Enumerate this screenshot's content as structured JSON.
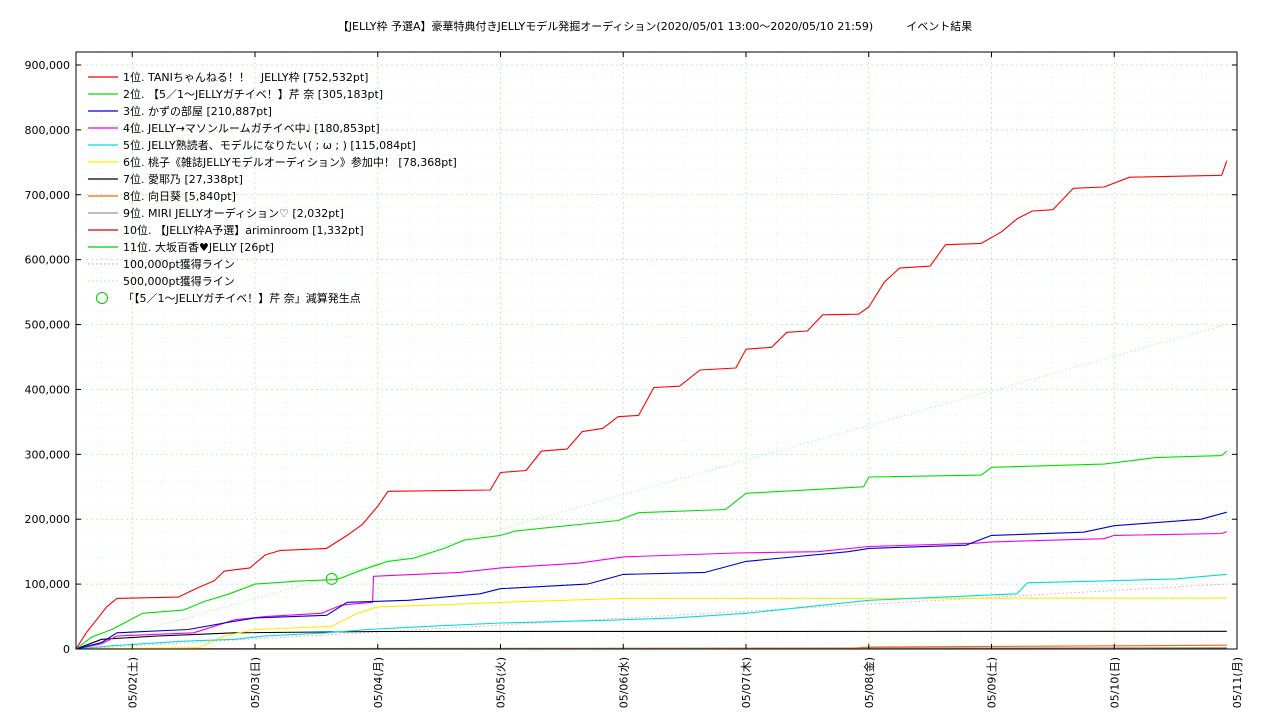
{
  "chart_data": {
    "type": "line",
    "title": "【JELLY枠 予選A】豪華特典付きJELLYモデル発掘オーディション(2020/05/01 13:00〜2020/05/10 21:59)　　　イベント結果",
    "x_start": "2020-05-01T13:00",
    "x_end": "2020-05-10T21:59",
    "xlim": [
      "2020-05-01T13:00",
      "2020-05-11T00:00"
    ],
    "ylim": [
      0,
      920000
    ],
    "y_ticks": [
      "0",
      "100,000",
      "200,000",
      "300,000",
      "400,000",
      "500,000",
      "600,000",
      "700,000",
      "800,000",
      "900,000"
    ],
    "x_ticks": [
      {
        "t": "2020-05-02T00:00",
        "label": "05/02(土)"
      },
      {
        "t": "2020-05-03T00:00",
        "label": "05/03(日)"
      },
      {
        "t": "2020-05-04T00:00",
        "label": "05/04(月)"
      },
      {
        "t": "2020-05-05T00:00",
        "label": "05/05(火)"
      },
      {
        "t": "2020-05-06T00:00",
        "label": "05/06(水)"
      },
      {
        "t": "2020-05-07T00:00",
        "label": "05/07(木)"
      },
      {
        "t": "2020-05-08T00:00",
        "label": "05/08(金)"
      },
      {
        "t": "2020-05-09T00:00",
        "label": "05/09(土)"
      },
      {
        "t": "2020-05-10T00:00",
        "label": "05/10(日)"
      },
      {
        "t": "2020-05-11T00:00",
        "label": "05/11(月)"
      }
    ],
    "grid": true,
    "legend_position": "top-left",
    "series": [
      {
        "name": "1位. TANIちゃんねる！！　JELLY枠 [752,532pt]",
        "color": "#ff0000",
        "style": "solid",
        "points": [
          [
            "2020-05-01T13:00",
            0
          ],
          [
            "2020-05-01T15:00",
            25000
          ],
          [
            "2020-05-01T17:00",
            45000
          ],
          [
            "2020-05-01T19:00",
            65000
          ],
          [
            "2020-05-01T21:00",
            78000
          ],
          [
            "2020-05-02T09:00",
            80000
          ],
          [
            "2020-05-02T13:00",
            95000
          ],
          [
            "2020-05-02T16:00",
            105000
          ],
          [
            "2020-05-02T18:00",
            120000
          ],
          [
            "2020-05-02T23:00",
            125000
          ],
          [
            "2020-05-03T02:00",
            145000
          ],
          [
            "2020-05-03T05:00",
            152000
          ],
          [
            "2020-05-03T14:00",
            155000
          ],
          [
            "2020-05-03T18:00",
            175000
          ],
          [
            "2020-05-03T21:00",
            192000
          ],
          [
            "2020-05-04T00:00",
            220000
          ],
          [
            "2020-05-04T02:00",
            243000
          ],
          [
            "2020-05-04T22:00",
            245000
          ],
          [
            "2020-05-05T00:00",
            272000
          ],
          [
            "2020-05-05T05:00",
            275000
          ],
          [
            "2020-05-05T08:00",
            305000
          ],
          [
            "2020-05-05T13:00",
            308000
          ],
          [
            "2020-05-05T16:00",
            335000
          ],
          [
            "2020-05-05T20:00",
            340000
          ],
          [
            "2020-05-05T23:00",
            358000
          ],
          [
            "2020-05-06T03:00",
            360000
          ],
          [
            "2020-05-06T06:00",
            403000
          ],
          [
            "2020-05-06T11:00",
            405000
          ],
          [
            "2020-05-06T15:00",
            430000
          ],
          [
            "2020-05-06T22:00",
            433000
          ],
          [
            "2020-05-07T00:00",
            462000
          ],
          [
            "2020-05-07T05:00",
            465000
          ],
          [
            "2020-05-07T08:00",
            488000
          ],
          [
            "2020-05-07T12:00",
            490000
          ],
          [
            "2020-05-07T15:00",
            515000
          ],
          [
            "2020-05-07T22:00",
            516000
          ],
          [
            "2020-05-08T00:00",
            527000
          ],
          [
            "2020-05-08T03:00",
            565000
          ],
          [
            "2020-05-08T06:00",
            587000
          ],
          [
            "2020-05-08T12:00",
            590000
          ],
          [
            "2020-05-08T15:00",
            623000
          ],
          [
            "2020-05-08T22:00",
            625000
          ],
          [
            "2020-05-09T02:00",
            643000
          ],
          [
            "2020-05-09T05:00",
            663000
          ],
          [
            "2020-05-09T08:00",
            675000
          ],
          [
            "2020-05-09T12:00",
            677000
          ],
          [
            "2020-05-09T16:00",
            710000
          ],
          [
            "2020-05-09T22:00",
            712000
          ],
          [
            "2020-05-10T03:00",
            727000
          ],
          [
            "2020-05-10T21:00",
            730000
          ],
          [
            "2020-05-10T22:00",
            752532
          ]
        ]
      },
      {
        "name": "2位. 【5／1〜JELLYガチイベ！】芹 奈 [305,183pt]",
        "color": "#00e000",
        "style": "solid",
        "points": [
          [
            "2020-05-01T13:00",
            0
          ],
          [
            "2020-05-01T16:00",
            18000
          ],
          [
            "2020-05-01T20:00",
            30000
          ],
          [
            "2020-05-02T02:00",
            55000
          ],
          [
            "2020-05-02T10:00",
            60000
          ],
          [
            "2020-05-02T14:00",
            73000
          ],
          [
            "2020-05-02T19:00",
            85000
          ],
          [
            "2020-05-03T00:00",
            100000
          ],
          [
            "2020-05-03T09:00",
            105000
          ],
          [
            "2020-05-03T16:00",
            107000
          ],
          [
            "2020-05-03T21:00",
            122000
          ],
          [
            "2020-05-04T02:00",
            135000
          ],
          [
            "2020-05-04T07:00",
            140000
          ],
          [
            "2020-05-04T13:00",
            155000
          ],
          [
            "2020-05-04T17:00",
            168000
          ],
          [
            "2020-05-05T00:00",
            175000
          ],
          [
            "2020-05-05T03:00",
            182000
          ],
          [
            "2020-05-05T23:00",
            198000
          ],
          [
            "2020-05-06T03:00",
            210000
          ],
          [
            "2020-05-06T20:00",
            215000
          ],
          [
            "2020-05-07T00:00",
            240000
          ],
          [
            "2020-05-07T23:00",
            250000
          ],
          [
            "2020-05-08T00:00",
            265000
          ],
          [
            "2020-05-08T22:00",
            268000
          ],
          [
            "2020-05-09T00:00",
            280000
          ],
          [
            "2020-05-09T22:00",
            285000
          ],
          [
            "2020-05-10T08:00",
            295000
          ],
          [
            "2020-05-10T21:00",
            298000
          ],
          [
            "2020-05-10T22:00",
            305183
          ]
        ]
      },
      {
        "name": "3位. かずの部屋 [210,887pt]",
        "color": "#0000cc",
        "style": "solid",
        "points": [
          [
            "2020-05-01T13:00",
            0
          ],
          [
            "2020-05-01T18:00",
            10000
          ],
          [
            "2020-05-01T21:00",
            25000
          ],
          [
            "2020-05-02T11:00",
            30000
          ],
          [
            "2020-05-02T18:00",
            40000
          ],
          [
            "2020-05-03T00:00",
            48000
          ],
          [
            "2020-05-03T14:00",
            52000
          ],
          [
            "2020-05-03T18:00",
            72000
          ],
          [
            "2020-05-04T06:00",
            75000
          ],
          [
            "2020-05-04T20:00",
            85000
          ],
          [
            "2020-05-05T00:00",
            93000
          ],
          [
            "2020-05-05T17:00",
            100000
          ],
          [
            "2020-05-06T00:00",
            115000
          ],
          [
            "2020-05-06T16:00",
            118000
          ],
          [
            "2020-05-07T00:00",
            135000
          ],
          [
            "2020-05-07T20:00",
            150000
          ],
          [
            "2020-05-08T00:00",
            155000
          ],
          [
            "2020-05-08T19:00",
            160000
          ],
          [
            "2020-05-09T00:00",
            175000
          ],
          [
            "2020-05-09T18:00",
            180000
          ],
          [
            "2020-05-10T00:00",
            190000
          ],
          [
            "2020-05-10T17:00",
            200000
          ],
          [
            "2020-05-10T22:00",
            210887
          ]
        ]
      },
      {
        "name": "4位. JELLY→マソンルームガチイベ中♩ [180,853pt]",
        "color": "#ee00ee",
        "style": "solid",
        "points": [
          [
            "2020-05-01T13:00",
            0
          ],
          [
            "2020-05-01T18:00",
            8000
          ],
          [
            "2020-05-01T21:00",
            20000
          ],
          [
            "2020-05-02T12:00",
            25000
          ],
          [
            "2020-05-02T20:00",
            45000
          ],
          [
            "2020-05-03T02:00",
            50000
          ],
          [
            "2020-05-03T13:00",
            55000
          ],
          [
            "2020-05-03T17:00",
            68000
          ],
          [
            "2020-05-03T23:00",
            72000
          ],
          [
            "2020-05-03T23:10",
            112000
          ],
          [
            "2020-05-04T16:00",
            118000
          ],
          [
            "2020-05-05T00:00",
            125000
          ],
          [
            "2020-05-05T15:00",
            132000
          ],
          [
            "2020-05-06T00:00",
            142000
          ],
          [
            "2020-05-06T22:00",
            148000
          ],
          [
            "2020-05-07T14:00",
            150000
          ],
          [
            "2020-05-08T00:00",
            158000
          ],
          [
            "2020-05-08T21:00",
            163000
          ],
          [
            "2020-05-09T00:00",
            165000
          ],
          [
            "2020-05-09T22:00",
            170000
          ],
          [
            "2020-05-10T00:00",
            175000
          ],
          [
            "2020-05-10T21:00",
            178000
          ],
          [
            "2020-05-10T22:00",
            180853
          ]
        ]
      },
      {
        "name": "5位. JELLY熟読者、モデルになりたい( ; ω ; ) [115,084pt]",
        "color": "#00dddd",
        "style": "solid",
        "points": [
          [
            "2020-05-01T13:00",
            0
          ],
          [
            "2020-05-01T20:00",
            5000
          ],
          [
            "2020-05-02T10:00",
            12000
          ],
          [
            "2020-05-02T20:00",
            15000
          ],
          [
            "2020-05-03T02:00",
            20000
          ],
          [
            "2020-05-03T14:00",
            25000
          ],
          [
            "2020-05-03T22:00",
            30000
          ],
          [
            "2020-05-04T10:00",
            35000
          ],
          [
            "2020-05-05T00:00",
            40000
          ],
          [
            "2020-05-05T20:00",
            44000
          ],
          [
            "2020-05-06T10:00",
            48000
          ],
          [
            "2020-05-07T00:00",
            55000
          ],
          [
            "2020-05-07T12:00",
            65000
          ],
          [
            "2020-05-08T00:00",
            75000
          ],
          [
            "2020-05-08T20:00",
            82000
          ],
          [
            "2020-05-09T05:00",
            85000
          ],
          [
            "2020-05-09T07:00",
            102000
          ],
          [
            "2020-05-09T22:00",
            105000
          ],
          [
            "2020-05-10T12:00",
            108000
          ],
          [
            "2020-05-10T22:00",
            115084
          ]
        ]
      },
      {
        "name": "6位. 桃子《雑誌JELLYモデルオーディション》参加中！ [78,368pt]",
        "color": "#ffee00",
        "style": "solid",
        "points": [
          [
            "2020-05-01T13:00",
            0
          ],
          [
            "2020-05-02T13:00",
            2000
          ],
          [
            "2020-05-02T18:00",
            20000
          ],
          [
            "2020-05-03T00:00",
            30000
          ],
          [
            "2020-05-03T15:00",
            35000
          ],
          [
            "2020-05-03T20:00",
            55000
          ],
          [
            "2020-05-04T00:00",
            65000
          ],
          [
            "2020-05-04T12:00",
            68000
          ],
          [
            "2020-05-05T00:00",
            72000
          ],
          [
            "2020-05-06T00:00",
            78000
          ],
          [
            "2020-05-10T22:00",
            78368
          ]
        ]
      },
      {
        "name": "7位. 愛耶乃 [27,338pt]",
        "color": "#000000",
        "style": "solid",
        "points": [
          [
            "2020-05-01T13:00",
            0
          ],
          [
            "2020-05-01T18:00",
            15000
          ],
          [
            "2020-05-02T05:00",
            20000
          ],
          [
            "2020-05-02T20:00",
            25000
          ],
          [
            "2020-05-04T00:00",
            27000
          ],
          [
            "2020-05-10T22:00",
            27338
          ]
        ]
      },
      {
        "name": "8位. 向日葵 [5,840pt]",
        "color": "#ff6600",
        "style": "solid",
        "points": [
          [
            "2020-05-01T13:00",
            0
          ],
          [
            "2020-05-07T20:00",
            500
          ],
          [
            "2020-05-08T00:00",
            3000
          ],
          [
            "2020-05-09T00:00",
            4000
          ],
          [
            "2020-05-10T00:00",
            5000
          ],
          [
            "2020-05-10T22:00",
            5840
          ]
        ]
      },
      {
        "name": "9位. MIRI JELLYオーディション♡ [2,032pt]",
        "color": "#999999",
        "style": "solid",
        "points": [
          [
            "2020-05-01T13:00",
            0
          ],
          [
            "2020-05-04T00:00",
            1000
          ],
          [
            "2020-05-10T22:00",
            2032
          ]
        ]
      },
      {
        "name": "10位. 【JELLY枠A予選】ariminroom [1,332pt]",
        "color": "#dd0000",
        "style": "solid",
        "points": [
          [
            "2020-05-01T13:00",
            0
          ],
          [
            "2020-05-05T00:00",
            600
          ],
          [
            "2020-05-10T22:00",
            1332
          ]
        ]
      },
      {
        "name": "11位. 大坂百香♥JELLY [26pt]",
        "color": "#00cc00",
        "style": "solid",
        "points": [
          [
            "2020-05-01T13:00",
            0
          ],
          [
            "2020-05-10T22:00",
            26
          ]
        ]
      },
      {
        "name": "100,000pt獲得ライン",
        "color": "#ff9999",
        "style": "dotted",
        "points": [
          [
            "2020-05-01T13:00",
            0
          ],
          [
            "2020-05-10T22:00",
            100000
          ]
        ]
      },
      {
        "name": "500,000pt獲得ライン",
        "color": "#99ff99",
        "style": "dotted",
        "points": [
          [
            "2020-05-01T13:00",
            0
          ],
          [
            "2020-05-10T22:00",
            500000
          ]
        ]
      }
    ],
    "markers": [
      {
        "name": "「【5／1〜JELLYガチイベ！】芹 奈」減算発生点",
        "color": "#00cc00",
        "shape": "circle",
        "points": [
          [
            "2020-05-03T15:00",
            108000
          ]
        ]
      }
    ]
  }
}
